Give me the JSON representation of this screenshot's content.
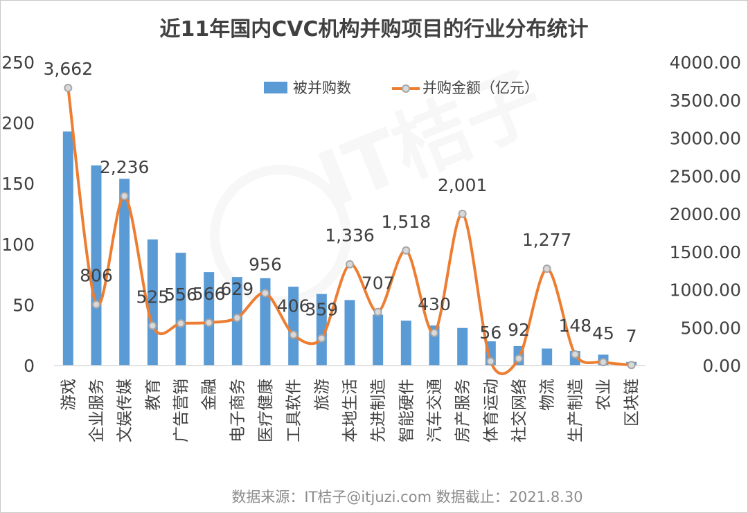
{
  "chart_data": {
    "type": "bar",
    "title": "近11年国内CVC机构并购项目的行业分布统计",
    "categories": [
      "游戏",
      "企业服务",
      "文娱传媒",
      "教育",
      "广告营销",
      "金融",
      "电子商务",
      "医疗健康",
      "工具软件",
      "旅游",
      "本地生活",
      "先进制造",
      "智能硬件",
      "汽车交通",
      "房产服务",
      "体育运动",
      "社交网络",
      "物流",
      "生产制造",
      "农业",
      "区块链"
    ],
    "series": [
      {
        "name": "被并购数",
        "type": "bar",
        "axis": "left",
        "color": "#5b9bd5",
        "values": [
          193,
          165,
          154,
          104,
          93,
          77,
          73,
          72,
          65,
          59,
          54,
          42,
          37,
          33,
          31,
          20,
          16,
          14,
          12,
          9,
          3
        ]
      },
      {
        "name": "并购金额（亿元）",
        "type": "line",
        "axis": "right",
        "color": "#ed7d31",
        "values": [
          3662,
          806,
          2236,
          525,
          556,
          566,
          629,
          956,
          406,
          359,
          1336,
          707,
          1518,
          430,
          2001,
          56,
          92,
          1277,
          148,
          45,
          7
        ],
        "labels": [
          "3,662",
          "806",
          "2,236",
          "525",
          "556",
          "566",
          "629",
          "956",
          "406",
          "359",
          "1,336",
          "707",
          "1,518",
          "430",
          "2,001",
          "56",
          "92",
          "1,277",
          "148",
          "45",
          "7"
        ]
      }
    ],
    "y_left": {
      "range": [
        0,
        250
      ],
      "ticks": [
        "0",
        "50",
        "100",
        "150",
        "200",
        "250"
      ]
    },
    "y_right": {
      "range": [
        0,
        4000
      ],
      "ticks": [
        "0.00",
        "500.00",
        "1000.00",
        "1500.00",
        "2000.00",
        "2500.00",
        "3000.00",
        "3500.00",
        "4000.00"
      ]
    },
    "grid": false,
    "legend_position": "top-center",
    "source_note": "数据来源：IT桔子@itjuzi.com  数据截止：2021.8.30",
    "watermark": "IT桔子 ITJUZI.COM",
    "colors": {
      "bar": "#5b9bd5",
      "line": "#ed7d31",
      "marker_fill": "#d9d9d9",
      "marker_stroke": "#a6a6a6",
      "axis": "#d9d9d9",
      "text": "#404040"
    }
  }
}
